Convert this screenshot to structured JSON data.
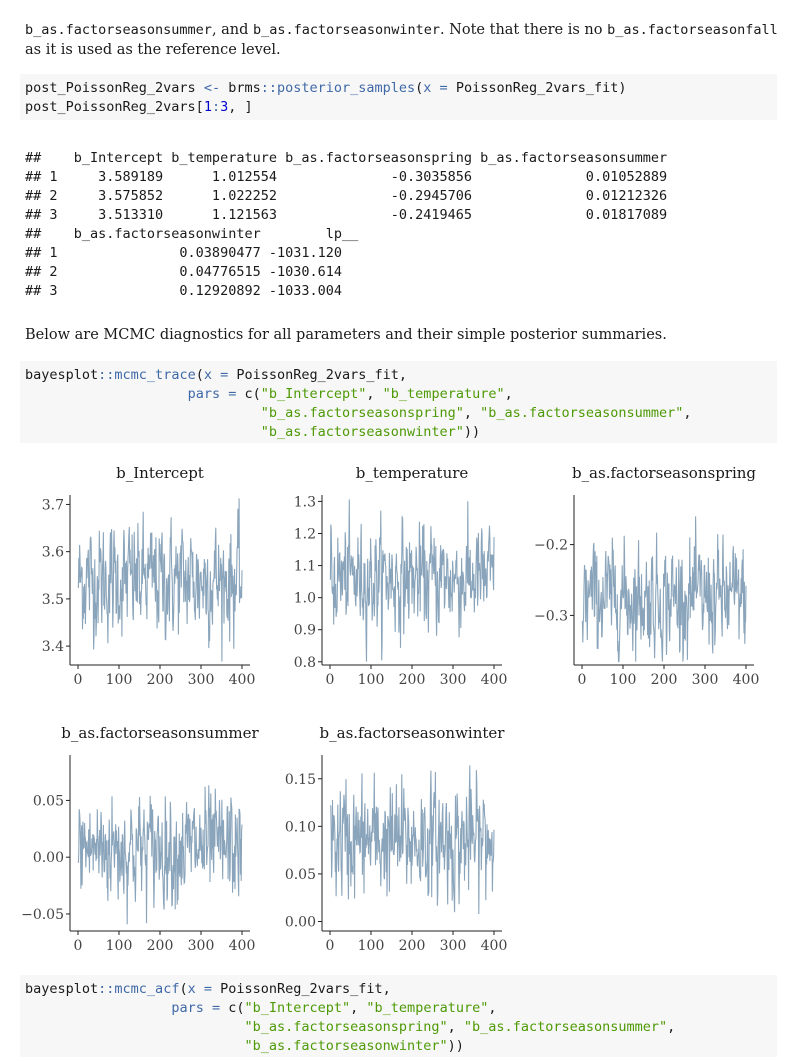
{
  "prose": {
    "p1_code1": "b_as.factorseasonsummer",
    "p1_t1": ", and ",
    "p1_code2": "b_as.factorseasonwinter",
    "p1_t2": ". Note that there is no ",
    "p1_code3": "b_as.factorseasonfall",
    "p1_t3": "as it is used as the reference level.",
    "p2": "Below are MCMC diagnostics for all parameters and their simple posterior summaries."
  },
  "code1": {
    "line1_a": "post_PoissonReg_2vars ",
    "line1_op": "<-",
    "line1_b": " brms",
    "line1_ns": "::",
    "line1_fn": "posterior_samples",
    "line1_c": "(",
    "line1_arg": "x =",
    "line1_d": " PoissonReg_2vars_fit)",
    "line2_a": "post_PoissonReg_2vars[",
    "line2_n1": "1",
    "line2_colon": ":",
    "line2_n2": "3",
    "line2_b": ", ]"
  },
  "output_lines": [
    "##    b_Intercept b_temperature b_as.factorseasonspring b_as.factorseasonsummer",
    "## 1     3.589189      1.012554              -0.3035856              0.01052889",
    "## 2     3.575852      1.022252              -0.2945706              0.01212326",
    "## 3     3.513310      1.121563              -0.2419465              0.01817089",
    "##    b_as.factorseasonwinter        lp__",
    "## 1               0.03890477 -1031.120",
    "## 2               0.04776515 -1030.614",
    "## 3               0.12920892 -1033.004"
  ],
  "code2": {
    "pkg": "bayesplot",
    "ns": "::",
    "fn": "mcmc_trace",
    "arg_x": "x =",
    "fit": " PoissonReg_2vars_fit,",
    "arg_pars": "pars =",
    "c_fn": " c(",
    "s1": "\"b_Intercept\"",
    "s2": "\"b_temperature\"",
    "s3": "\"b_as.factorseasonspring\"",
    "s4": "\"b_as.factorseasonsummer\"",
    "s5": "\"b_as.factorseasonwinter\"",
    "close": "))"
  },
  "code3": {
    "pkg": "bayesplot",
    "ns": "::",
    "fn": "mcmc_acf",
    "arg_x": "x =",
    "fit": " PoissonReg_2vars_fit,",
    "arg_pars": "pars =",
    "c_fn": " c(",
    "s1": "\"b_Intercept\"",
    "s2": "\"b_temperature\"",
    "s3": "\"b_as.factorseasonspring\"",
    "s4": "\"b_as.factorseasonsummer\"",
    "s5": "\"b_as.factorseasonwinter\"",
    "close": "))"
  },
  "trace_color": "#8aa5bb",
  "chart_data": [
    {
      "type": "line",
      "title": "b_Intercept",
      "x_range": [
        1,
        400
      ],
      "x_ticks": [
        0,
        100,
        200,
        300,
        400
      ],
      "y_ticks": [
        3.4,
        3.5,
        3.6,
        3.7
      ],
      "y_tick_labels": [
        "3.4",
        "3.5",
        "3.6",
        "3.7"
      ],
      "ylim": [
        3.36,
        3.72
      ],
      "center": 3.54,
      "spread": 0.055,
      "grid": false
    },
    {
      "type": "line",
      "title": "b_temperature",
      "x_range": [
        1,
        400
      ],
      "x_ticks": [
        0,
        100,
        200,
        300,
        400
      ],
      "y_ticks": [
        0.8,
        0.9,
        1.0,
        1.1,
        1.2,
        1.3
      ],
      "y_tick_labels": [
        "0.8",
        "0.9",
        "1.0",
        "1.1",
        "1.2",
        "1.3"
      ],
      "ylim": [
        0.79,
        1.32
      ],
      "center": 1.06,
      "spread": 0.075,
      "grid": false
    },
    {
      "type": "line",
      "title": "b_as.factorseasonspring",
      "x_range": [
        1,
        400
      ],
      "x_ticks": [
        0,
        100,
        200,
        300,
        400
      ],
      "y_ticks": [
        -0.3,
        -0.2
      ],
      "y_tick_labels": [
        "−0.3",
        "−0.2"
      ],
      "ylim": [
        -0.37,
        -0.13
      ],
      "center": -0.275,
      "spread": 0.035,
      "grid": false
    },
    {
      "type": "line",
      "title": "b_as.factorseasonsummer",
      "x_range": [
        1,
        400
      ],
      "x_ticks": [
        0,
        100,
        200,
        300,
        400
      ],
      "y_ticks": [
        -0.05,
        0.0,
        0.05
      ],
      "y_tick_labels": [
        "−0.05",
        "0.00",
        "0.05"
      ],
      "ylim": [
        -0.065,
        0.09
      ],
      "center": 0.008,
      "spread": 0.022,
      "grid": false
    },
    {
      "type": "line",
      "title": "b_as.factorseasonwinter",
      "x_range": [
        1,
        400
      ],
      "x_ticks": [
        0,
        100,
        200,
        300,
        400
      ],
      "y_ticks": [
        0.0,
        0.05,
        0.1,
        0.15
      ],
      "y_tick_labels": [
        "0.00",
        "0.05",
        "0.10",
        "0.15"
      ],
      "ylim": [
        -0.01,
        0.175
      ],
      "center": 0.085,
      "spread": 0.028,
      "grid": false
    }
  ]
}
